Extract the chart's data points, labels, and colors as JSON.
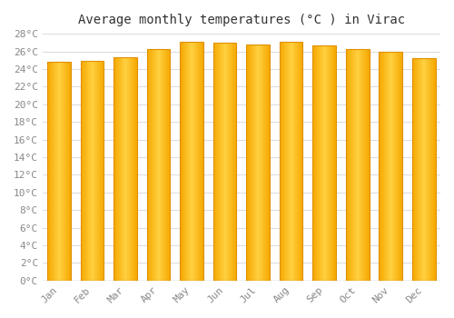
{
  "title": "Average monthly temperatures (°C ) in Virac",
  "months": [
    "Jan",
    "Feb",
    "Mar",
    "Apr",
    "May",
    "Jun",
    "Jul",
    "Aug",
    "Sep",
    "Oct",
    "Nov",
    "Dec"
  ],
  "values": [
    24.8,
    24.9,
    25.3,
    26.3,
    27.1,
    27.0,
    26.8,
    27.1,
    26.7,
    26.3,
    25.9,
    25.2
  ],
  "bar_color_center": "#FFD040",
  "bar_color_edge": "#F5A800",
  "bar_border_color": "#E09000",
  "background_color": "#ffffff",
  "grid_color": "#dddddd",
  "title_fontsize": 10,
  "tick_fontsize": 8,
  "tick_color": "#888888",
  "ylim": [
    0,
    28
  ],
  "ytick_step": 2,
  "bar_width": 0.7,
  "figsize": [
    5.0,
    3.5
  ],
  "dpi": 100
}
